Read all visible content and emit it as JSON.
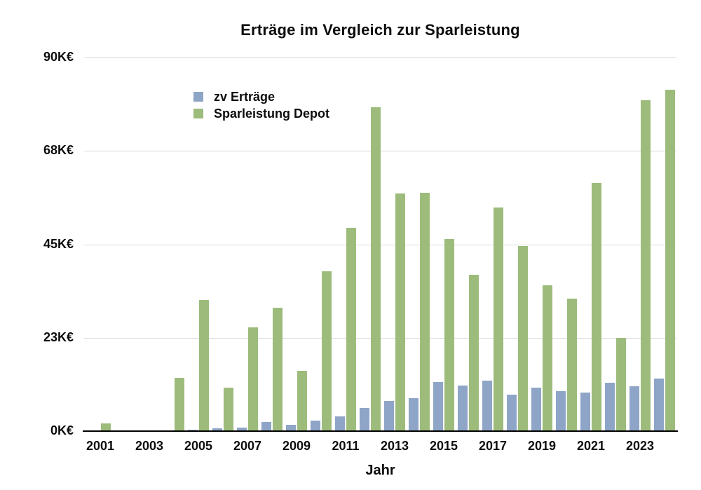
{
  "title": "Erträge im Vergleich zur Sparleistung",
  "legend": [
    {
      "label": "zv Erträge",
      "color": "#8EA5C7"
    },
    {
      "label": "Sparleistung Depot",
      "color": "#9DBC7C"
    }
  ],
  "colors": {
    "zv_ertraege": "#8EA5C7",
    "sparleistung_depot": "#9DBC7C",
    "gridline": "#d9d9d9",
    "axis": "#000000",
    "text": "#0d0d0d"
  },
  "chart_data": {
    "type": "bar",
    "title": "Erträge im Vergleich zur Sparleistung",
    "xlabel": "Jahr",
    "ylabel": "",
    "unit": "K€",
    "ylim": [
      0,
      90
    ],
    "grid": true,
    "legend_position": "top-left-inside",
    "categories": [
      2001,
      2002,
      2003,
      2004,
      2005,
      2006,
      2007,
      2008,
      2009,
      2010,
      2011,
      2012,
      2013,
      2014,
      2015,
      2016,
      2017,
      2018,
      2019,
      2020,
      2021,
      2022,
      2023,
      2024
    ],
    "series": [
      {
        "name": "zv Erträge",
        "color": "#8EA5C7",
        "values": [
          0,
          0,
          0,
          0,
          0.4,
          0.6,
          0.9,
          2.2,
          1.5,
          2.5,
          3.5,
          5.5,
          7.2,
          8.0,
          11.9,
          11.0,
          12.1,
          8.7,
          10.4,
          9.6,
          9.3,
          11.7,
          10.8,
          12.7
        ]
      },
      {
        "name": "Sparleistung Depot",
        "color": "#9DBC7C",
        "values": [
          1.9,
          0,
          0,
          12.8,
          31.6,
          10.5,
          25.0,
          29.8,
          14.5,
          38.5,
          49.0,
          78.0,
          57.2,
          57.4,
          46.3,
          37.6,
          53.8,
          44.6,
          35.1,
          31.9,
          59.7,
          22.5,
          79.7,
          82.3
        ]
      }
    ],
    "y_ticks": [
      {
        "value": 0,
        "label": "0K€"
      },
      {
        "value": 22.5,
        "label": "23K€"
      },
      {
        "value": 45,
        "label": "45K€"
      },
      {
        "value": 67.5,
        "label": "68K€"
      },
      {
        "value": 90,
        "label": "90K€"
      }
    ],
    "x_tick_labels": [
      "2001",
      "2003",
      "2005",
      "2007",
      "2009",
      "2011",
      "2013",
      "2015",
      "2017",
      "2019",
      "2021",
      "2023"
    ]
  }
}
